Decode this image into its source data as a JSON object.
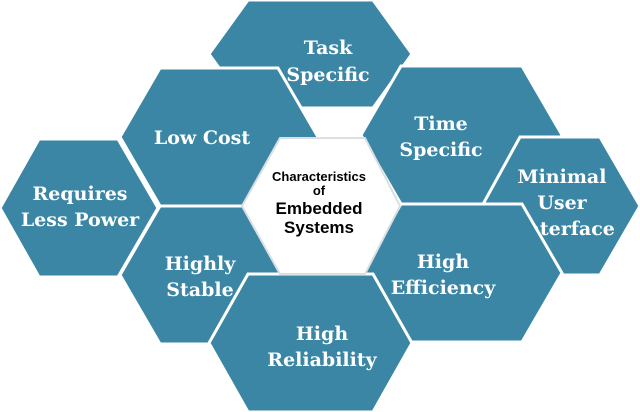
{
  "colors": {
    "hex_fill": "#3A86A4",
    "hex_stroke": "#ffffff",
    "center_fill": "#ffffff",
    "center_stroke": "#d9dfe3",
    "label_text": "#ffffff",
    "center_text": "#000000"
  },
  "center": {
    "line1": "Characteristics",
    "line2": "of",
    "line3": "Embedded",
    "line4": "Systems"
  },
  "hexagons": {
    "task_specific": {
      "line1": "Task",
      "line2": "Specific"
    },
    "low_cost": {
      "line1": "Low Cost"
    },
    "time_specific": {
      "line1": "Time",
      "line2": "Specific"
    },
    "requires_power": {
      "line1": "Requires",
      "line2": "Less Power"
    },
    "minimal_ui": {
      "line1": "Minimal",
      "line2": "User",
      "line3": "Interface"
    },
    "highly_stable": {
      "line1": "Highly",
      "line2": "Stable"
    },
    "high_efficiency": {
      "line1": "High",
      "line2": "Efficiency"
    },
    "high_reliability": {
      "line1": "High",
      "line2": "Reliability"
    }
  }
}
